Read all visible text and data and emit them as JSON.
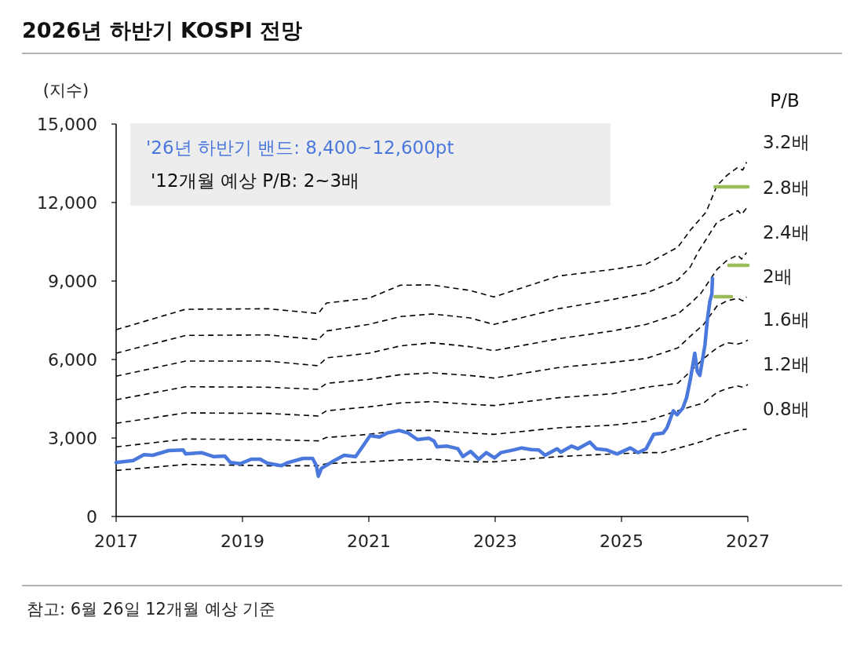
{
  "chart_data": {
    "type": "line",
    "title": "2026년 하반기 KOSPI 전망",
    "ylabel": "(지수)",
    "legend_title": "P/B",
    "xlim": [
      2017,
      2027
    ],
    "xticks": [
      2017,
      2019,
      2021,
      2023,
      2025,
      2027
    ],
    "ylim": [
      0,
      15000
    ],
    "yticks": [
      {
        "value": 0,
        "label": "0"
      },
      {
        "value": 3000,
        "label": "3,000"
      },
      {
        "value": 6000,
        "label": "6,000"
      },
      {
        "value": 9000,
        "label": "9,000"
      },
      {
        "value": 12000,
        "label": "12,000"
      },
      {
        "value": 15000,
        "label": "15,000"
      }
    ],
    "annotations": [
      "'26년 하반기 밴드: 8,400~12,600pt",
      "'12개월 예상 P/B: 2~3배",
      "참고: 6월 26일 12개월 예상 기준"
    ],
    "series": [
      {
        "color": "#4a78dc",
        "line_style": "solid",
        "x": [
          2017.0,
          2017.27,
          2017.44,
          2017.58,
          2017.83,
          2018.06,
          2018.1,
          2018.35,
          2018.54,
          2018.72,
          2018.81,
          2018.97,
          2019.14,
          2019.28,
          2019.39,
          2019.61,
          2019.72,
          2019.96,
          2020.11,
          2020.17,
          2020.2,
          2020.25,
          2020.42,
          2020.61,
          2020.79,
          2020.92,
          2021.02,
          2021.17,
          2021.29,
          2021.48,
          2021.62,
          2021.77,
          2021.95,
          2022.03,
          2022.08,
          2022.24,
          2022.41,
          2022.49,
          2022.61,
          2022.74,
          2022.86,
          2022.99,
          2023.09,
          2023.28,
          2023.42,
          2023.57,
          2023.69,
          2023.79,
          2023.98,
          2024.04,
          2024.21,
          2024.31,
          2024.5,
          2024.6,
          2024.77,
          2024.93,
          2025.14,
          2025.26,
          2025.39,
          2025.51,
          2025.66,
          2025.72,
          2025.82,
          2025.88,
          2025.97,
          2026.03,
          2026.09,
          2026.16,
          2026.2,
          2026.24,
          2026.32,
          2026.36,
          2026.4,
          2026.43,
          2026.44
        ],
        "values": [
          2060,
          2140,
          2360,
          2340,
          2520,
          2540,
          2390,
          2440,
          2290,
          2310,
          2060,
          2020,
          2190,
          2190,
          2040,
          1940,
          2060,
          2220,
          2220,
          1940,
          1540,
          1840,
          2090,
          2340,
          2290,
          2740,
          3090,
          3040,
          3190,
          3290,
          3190,
          2940,
          2990,
          2890,
          2660,
          2690,
          2590,
          2290,
          2490,
          2190,
          2440,
          2240,
          2440,
          2540,
          2620,
          2560,
          2540,
          2340,
          2590,
          2460,
          2690,
          2590,
          2840,
          2590,
          2540,
          2390,
          2620,
          2440,
          2590,
          3140,
          3190,
          3390,
          4040,
          3890,
          4140,
          4540,
          5240,
          6240,
          5540,
          5390,
          6540,
          7540,
          8240,
          8500,
          9100
        ]
      },
      {
        "name": "3.2배",
        "color": "#000000",
        "line_style": "dashed",
        "x": [
          2017.0,
          2018.1,
          2019.4,
          2020.2,
          2020.33,
          2021.0,
          2021.5,
          2022.0,
          2022.6,
          2022.98,
          2024.0,
          2024.85,
          2025.39,
          2025.89,
          2026.09,
          2026.34,
          2026.51,
          2026.67,
          2026.84,
          2026.92,
          2026.98
        ],
        "values": [
          7140,
          7920,
          7940,
          7760,
          8160,
          8340,
          8840,
          8850,
          8640,
          8390,
          9190,
          9440,
          9640,
          10290,
          10940,
          11640,
          12640,
          13040,
          13340,
          13240,
          13540
        ]
      },
      {
        "name": "2.8배",
        "color": "#000000",
        "line_style": "dashed",
        "x": [
          2017.0,
          2018.1,
          2019.4,
          2020.2,
          2020.33,
          2021.0,
          2021.5,
          2022.0,
          2022.6,
          2022.98,
          2024.0,
          2024.85,
          2025.39,
          2025.89,
          2026.09,
          2026.22,
          2026.51,
          2026.67,
          2026.84,
          2026.9,
          2026.98
        ],
        "values": [
          6240,
          6920,
          6940,
          6760,
          7090,
          7340,
          7640,
          7740,
          7590,
          7340,
          7940,
          8290,
          8540,
          9040,
          9540,
          10140,
          11240,
          11440,
          11690,
          11540,
          11790
        ]
      },
      {
        "name": "2.4배",
        "color": "#000000",
        "line_style": "dashed",
        "x": [
          2017.0,
          2018.1,
          2019.4,
          2020.2,
          2020.33,
          2021.0,
          2021.5,
          2022.0,
          2022.6,
          2022.98,
          2024.0,
          2024.85,
          2025.39,
          2025.89,
          2026.09,
          2026.26,
          2026.51,
          2026.67,
          2026.84,
          2026.9,
          2026.98
        ],
        "values": [
          5360,
          5940,
          5940,
          5760,
          6060,
          6240,
          6520,
          6640,
          6490,
          6340,
          6790,
          7090,
          7340,
          7740,
          8140,
          8540,
          9440,
          9790,
          9990,
          9840,
          10090
        ]
      },
      {
        "name": "2배",
        "color": "#000000",
        "line_style": "dashed",
        "x": [
          2017.0,
          2018.1,
          2019.4,
          2020.2,
          2020.33,
          2021.0,
          2021.5,
          2022.0,
          2022.6,
          2022.98,
          2024.0,
          2024.85,
          2025.39,
          2025.89,
          2026.09,
          2026.3,
          2026.51,
          2026.67,
          2026.84,
          2026.92,
          2026.98
        ],
        "values": [
          4460,
          4960,
          4940,
          4860,
          5090,
          5240,
          5420,
          5490,
          5390,
          5290,
          5690,
          5890,
          6040,
          6440,
          6890,
          7340,
          8040,
          8240,
          8340,
          8240,
          8390
        ]
      },
      {
        "name": "1.6배",
        "color": "#000000",
        "line_style": "dashed",
        "x": [
          2017.0,
          2018.1,
          2019.4,
          2020.2,
          2020.33,
          2021.0,
          2021.5,
          2022.0,
          2022.6,
          2022.98,
          2024.0,
          2024.85,
          2025.39,
          2025.89,
          2026.09,
          2026.3,
          2026.51,
          2026.67,
          2026.84,
          2026.92,
          2027.0
        ],
        "values": [
          3560,
          3960,
          3940,
          3840,
          4040,
          4190,
          4340,
          4390,
          4290,
          4240,
          4540,
          4690,
          4940,
          5090,
          5540,
          6040,
          6440,
          6640,
          6590,
          6640,
          6740
        ]
      },
      {
        "name": "1.2배",
        "color": "#000000",
        "line_style": "dashed",
        "x": [
          2017.0,
          2018.1,
          2019.4,
          2020.2,
          2020.33,
          2021.0,
          2021.5,
          2022.0,
          2022.6,
          2022.98,
          2024.0,
          2024.85,
          2025.39,
          2025.89,
          2026.09,
          2026.3,
          2026.51,
          2026.67,
          2026.84,
          2026.92,
          2027.0
        ],
        "values": [
          2660,
          2960,
          2940,
          2890,
          3020,
          3140,
          3290,
          3290,
          3190,
          3140,
          3390,
          3490,
          3640,
          4040,
          4190,
          4340,
          4740,
          4890,
          4990,
          4940,
          5040
        ]
      },
      {
        "name": "0.8배",
        "color": "#000000",
        "line_style": "dashed",
        "x": [
          2017.0,
          2018.1,
          2019.4,
          2020.2,
          2020.33,
          2021.0,
          2021.5,
          2022.0,
          2022.6,
          2022.98,
          2024.0,
          2024.85,
          2025.39,
          2025.64,
          2026.09,
          2026.3,
          2026.51,
          2026.67,
          2026.84,
          2026.98
        ],
        "values": [
          1760,
          1990,
          1940,
          1940,
          2020,
          2090,
          2160,
          2190,
          2090,
          2090,
          2290,
          2390,
          2440,
          2440,
          2740,
          2890,
          3090,
          3190,
          3290,
          3340
        ]
      },
      {
        "color": "#9bbb59",
        "line_style": "solid",
        "x": [
          2026.48,
          2026.74
        ],
        "values": [
          8400,
          8400
        ]
      },
      {
        "color": "#9bbb59",
        "line_style": "solid",
        "x": [
          2026.7,
          2027.0
        ],
        "values": [
          9600,
          9600
        ]
      },
      {
        "color": "#9bbb59",
        "line_style": "solid",
        "x": [
          2026.48,
          2027.0
        ],
        "values": [
          12600,
          12600
        ]
      }
    ]
  }
}
